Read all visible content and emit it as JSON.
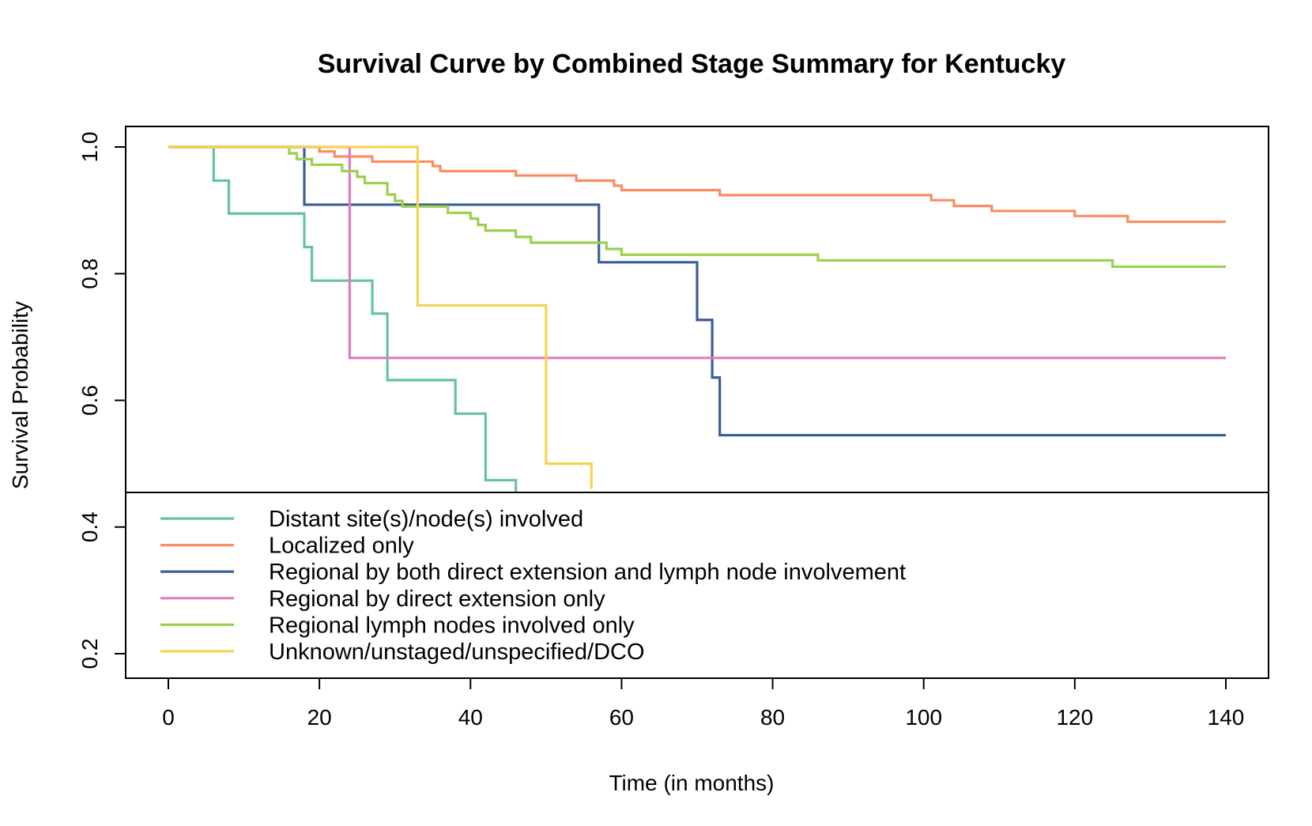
{
  "chart_data": {
    "type": "line",
    "step": true,
    "title": "Survival Curve by Combined Stage Summary for Kentucky",
    "xlabel": "Time (in months)",
    "ylabel": "Survival Probability",
    "xlim": [
      0,
      140
    ],
    "ylim": [
      0.2,
      1.0
    ],
    "x_ticks": [
      "0",
      "20",
      "40",
      "60",
      "80",
      "100",
      "120",
      "140"
    ],
    "y_ticks": [
      "0.2",
      "0.4",
      "0.6",
      "0.8",
      "1.0"
    ],
    "grid": false,
    "legend_position": "bottom, inside plot",
    "series": [
      {
        "name": "Distant site(s)/node(s) involved",
        "color": "#66c2a5",
        "points": [
          [
            0,
            1.0
          ],
          [
            6,
            0.947
          ],
          [
            8,
            0.895
          ],
          [
            18,
            0.842
          ],
          [
            19,
            0.789
          ],
          [
            27,
            0.737
          ],
          [
            29,
            0.632
          ],
          [
            38,
            0.579
          ],
          [
            42,
            0.474
          ],
          [
            46,
            0.45
          ]
        ]
      },
      {
        "name": "Localized only",
        "color": "#fc8d62",
        "points": [
          [
            0,
            1.0
          ],
          [
            20,
            0.993
          ],
          [
            22,
            0.985
          ],
          [
            27,
            0.977
          ],
          [
            35,
            0.97
          ],
          [
            36,
            0.962
          ],
          [
            46,
            0.955
          ],
          [
            54,
            0.947
          ],
          [
            59,
            0.939
          ],
          [
            60,
            0.932
          ],
          [
            73,
            0.924
          ],
          [
            101,
            0.916
          ],
          [
            104,
            0.907
          ],
          [
            109,
            0.899
          ],
          [
            120,
            0.891
          ],
          [
            127,
            0.882
          ],
          [
            140,
            0.882
          ]
        ]
      },
      {
        "name": "Regional by both direct extension and lymph node involvement",
        "color": "#3a5d96",
        "points": [
          [
            0,
            1.0
          ],
          [
            18,
            0.909
          ],
          [
            57,
            0.818
          ],
          [
            70,
            0.727
          ],
          [
            72,
            0.636
          ],
          [
            73,
            0.545
          ],
          [
            140,
            0.545
          ]
        ]
      },
      {
        "name": "Regional by direct extension only",
        "color": "#e07bc0",
        "points": [
          [
            0,
            1.0
          ],
          [
            24,
            0.667
          ],
          [
            140,
            0.667
          ]
        ]
      },
      {
        "name": "Regional lymph nodes involved only",
        "color": "#99d14f",
        "points": [
          [
            0,
            1.0
          ],
          [
            16,
            0.99
          ],
          [
            17,
            0.981
          ],
          [
            19,
            0.972
          ],
          [
            23,
            0.962
          ],
          [
            25,
            0.953
          ],
          [
            26,
            0.943
          ],
          [
            29,
            0.925
          ],
          [
            30,
            0.915
          ],
          [
            31,
            0.906
          ],
          [
            37,
            0.896
          ],
          [
            40,
            0.887
          ],
          [
            41,
            0.877
          ],
          [
            42,
            0.868
          ],
          [
            46,
            0.858
          ],
          [
            48,
            0.849
          ],
          [
            58,
            0.839
          ],
          [
            60,
            0.83
          ],
          [
            86,
            0.821
          ],
          [
            125,
            0.811
          ],
          [
            140,
            0.811
          ]
        ]
      },
      {
        "name": "Unknown/unstaged/unspecified/DCO",
        "color": "#f5d44f",
        "points": [
          [
            0,
            1.0
          ],
          [
            33,
            0.75
          ],
          [
            50,
            0.5
          ],
          [
            56,
            0.46
          ]
        ]
      }
    ]
  }
}
